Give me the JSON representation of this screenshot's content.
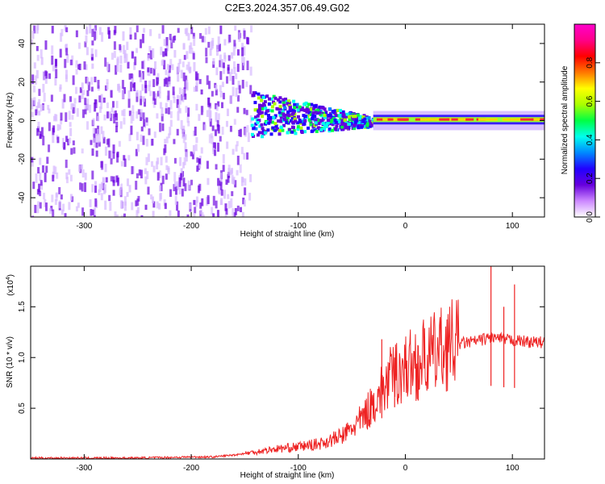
{
  "title": "C2E3.2024.357.06.49.G02",
  "chart_data": [
    {
      "type": "heatmap",
      "xlabel": "Height of straight line (km)",
      "ylabel": "Frequency (Hz)",
      "xlim": [
        -350,
        130
      ],
      "ylim": [
        -50,
        50
      ],
      "xticks": [
        -300,
        -200,
        -100,
        0,
        100
      ],
      "yticks": [
        -40,
        -20,
        0,
        20,
        40
      ],
      "colorbar": {
        "label": "Normalized spectral amplitude",
        "range": [
          0,
          1
        ],
        "ticks": [
          "0.0",
          "0.2",
          "0.4",
          "0.6",
          "0.8"
        ],
        "colors": [
          "#ffffff",
          "#cc88ff",
          "#6600dd",
          "#2200ff",
          "#0088ff",
          "#00ffee",
          "#00ff44",
          "#aaff00",
          "#ffff00",
          "#ff7700",
          "#ff0000",
          "#ff0088",
          "#ff00cc"
        ]
      },
      "regions": [
        {
          "x_range": [
            -350,
            -145
          ],
          "freq_range": [
            -50,
            50
          ],
          "amplitude": 0.1
        },
        {
          "x_range": [
            -145,
            -30
          ],
          "freq_range": [
            -10,
            12
          ],
          "amplitude": 0.3
        },
        {
          "x_range": [
            -30,
            130
          ],
          "freq_range": [
            -2,
            3
          ],
          "amplitude": 0.6
        }
      ]
    },
    {
      "type": "line",
      "xlabel": "Height of straight line (km)",
      "ylabel": "SNR (10 * v/v)",
      "yscale_label": "(x10",
      "yscale_exp": "4",
      "xlim": [
        -350,
        130
      ],
      "ylim": [
        0,
        1.9
      ],
      "xticks": [
        -300,
        -200,
        -100,
        0,
        100
      ],
      "yticks": [
        "0.5",
        "1.0",
        "1.5"
      ],
      "line_color": "#ee2222",
      "series": [
        {
          "x": [
            -350,
            -300,
            -250,
            -200,
            -180,
            -160,
            -140,
            -120,
            -100,
            -80,
            -60,
            -50,
            -40,
            -30,
            -20,
            -10,
            0,
            10,
            20,
            30,
            40,
            50,
            60,
            70,
            80,
            90,
            100,
            110,
            120,
            130
          ],
          "y": [
            0.01,
            0.01,
            0.01,
            0.02,
            0.02,
            0.04,
            0.07,
            0.1,
            0.12,
            0.15,
            0.22,
            0.3,
            0.4,
            0.55,
            0.7,
            0.85,
            0.9,
            0.95,
            1.0,
            1.05,
            1.12,
            1.14,
            1.15,
            1.17,
            1.2,
            1.18,
            1.17,
            1.16,
            1.15,
            1.15
          ]
        }
      ],
      "spikes": [
        {
          "x": 80,
          "y": 1.9
        },
        {
          "x": 92,
          "y": 1.5
        },
        {
          "x": 102,
          "y": 1.72
        },
        {
          "x": -22,
          "y": 1.18
        },
        {
          "x": -10,
          "y": 1.0
        },
        {
          "x": 12,
          "y": 0.95
        }
      ]
    }
  ]
}
